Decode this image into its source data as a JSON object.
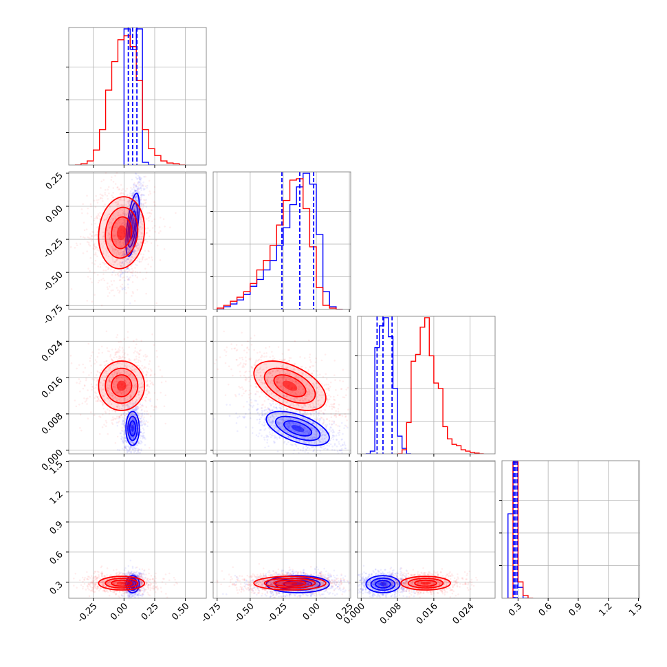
{
  "colors": {
    "blue": "#0000ff",
    "red": "#ff0000",
    "grid": "#b0b0b0",
    "axis": "#000000"
  },
  "chart_data": {
    "type": "corner",
    "parameters": [
      {
        "id": "p0",
        "range": [
          -0.45,
          0.67
        ],
        "ticks": [
          "-0.25",
          "0.00",
          "0.25",
          "0.50"
        ],
        "tick_values": [
          -0.25,
          0.0,
          0.25,
          0.5
        ]
      },
      {
        "id": "p1",
        "range": [
          -0.78,
          0.26
        ],
        "ticks": [
          "-0.75",
          "-0.50",
          "-0.25",
          "0.00",
          "0.25"
        ],
        "tick_values": [
          -0.75,
          -0.5,
          -0.25,
          0.0,
          0.25
        ]
      },
      {
        "id": "p2",
        "range": [
          -0.0008,
          0.0295
        ],
        "ticks": [
          "0.000",
          "0.008",
          "0.016",
          "0.024"
        ],
        "tick_values": [
          0.0,
          0.008,
          0.016,
          0.024
        ]
      },
      {
        "id": "p3",
        "range": [
          0.14,
          1.51
        ],
        "ticks": [
          "0.3",
          "0.6",
          "0.9",
          "1.2",
          "1.5"
        ],
        "tick_values": [
          0.3,
          0.6,
          0.9,
          1.2,
          1.5
        ]
      }
    ],
    "series": [
      {
        "color": "blue",
        "means": [
          0.07,
          -0.14,
          0.0048,
          0.28
        ],
        "stds": [
          0.032,
          0.14,
          0.0022,
          0.05
        ],
        "corr": {
          "0-1": 0.6,
          "0-2": 0.0,
          "0-3": 0.0,
          "1-2": -0.55,
          "1-3": 0.0,
          "2-3": 0.0
        },
        "quantiles": [
          [
            0.035,
            0.07,
            0.105
          ],
          [
            -0.26,
            -0.125,
            -0.02
          ],
          [
            0.0035,
            0.0048,
            0.0068
          ],
          [
            0.255,
            0.27,
            0.29
          ]
        ],
        "histograms": [
          {
            "edges": [
              0.0,
              0.05,
              0.1,
              0.15,
              0.2,
              0.25
            ],
            "counts": [
              1.0,
              0.85,
              1.0,
              0.02,
              0.0
            ]
          },
          {
            "edges": [
              -0.75,
              -0.7,
              -0.65,
              -0.6,
              -0.55,
              -0.5,
              -0.45,
              -0.4,
              -0.35,
              -0.3,
              -0.25,
              -0.2,
              -0.15,
              -0.1,
              -0.05,
              0.0,
              0.05,
              0.1,
              0.15,
              0.2
            ],
            "counts": [
              0.0,
              0.02,
              0.04,
              0.07,
              0.11,
              0.17,
              0.22,
              0.29,
              0.36,
              0.47,
              0.6,
              0.77,
              0.9,
              1.0,
              0.92,
              0.55,
              0.13,
              0.02,
              0.0
            ]
          },
          {
            "edges": [
              0.001,
              0.002,
              0.003,
              0.004,
              0.005,
              0.006,
              0.007,
              0.008,
              0.009,
              0.01,
              0.011
            ],
            "counts": [
              0.0,
              0.02,
              0.78,
              0.94,
              1.0,
              0.86,
              0.48,
              0.13,
              0.04,
              0.0
            ]
          },
          {
            "edges": [
              0.2,
              0.25,
              0.3,
              0.35,
              0.4
            ],
            "counts": [
              0.62,
              1.0,
              0.08,
              0.0
            ]
          }
        ]
      },
      {
        "color": "red",
        "means": [
          -0.02,
          -0.2,
          0.0142,
          0.29
        ],
        "stds": [
          0.11,
          0.16,
          0.0032,
          0.04
        ],
        "corr": {
          "0-1": 0.1,
          "0-2": 0.0,
          "0-3": 0.0,
          "1-2": -0.5,
          "1-3": 0.0,
          "2-3": 0.0
        },
        "histograms": [
          {
            "edges": [
              -0.4,
              -0.35,
              -0.3,
              -0.25,
              -0.2,
              -0.15,
              -0.1,
              -0.05,
              0.0,
              0.05,
              0.1,
              0.15,
              0.2,
              0.25,
              0.3,
              0.35,
              0.4,
              0.45,
              0.5
            ],
            "counts": [
              0.0,
              0.01,
              0.03,
              0.11,
              0.26,
              0.55,
              0.76,
              0.92,
              0.95,
              0.87,
              0.62,
              0.26,
              0.12,
              0.07,
              0.03,
              0.015,
              0.01,
              0.0
            ]
          },
          {
            "edges": [
              -0.75,
              -0.7,
              -0.65,
              -0.6,
              -0.55,
              -0.5,
              -0.45,
              -0.4,
              -0.35,
              -0.3,
              -0.25,
              -0.2,
              -0.15,
              -0.1,
              -0.05,
              0.0,
              0.05,
              0.1,
              0.15,
              0.2
            ],
            "counts": [
              0.01,
              0.03,
              0.06,
              0.09,
              0.13,
              0.19,
              0.29,
              0.36,
              0.47,
              0.62,
              0.8,
              0.95,
              0.96,
              0.74,
              0.46,
              0.16,
              0.03,
              0.01,
              0.0
            ]
          },
          {
            "edges": [
              0.008,
              0.009,
              0.01,
              0.011,
              0.012,
              0.013,
              0.014,
              0.015,
              0.016,
              0.017,
              0.018,
              0.019,
              0.02,
              0.021,
              0.022,
              0.023,
              0.024,
              0.025,
              0.026,
              0.027
            ],
            "counts": [
              0.0,
              0.03,
              0.23,
              0.68,
              0.73,
              0.93,
              1.0,
              0.72,
              0.52,
              0.48,
              0.2,
              0.11,
              0.07,
              0.06,
              0.03,
              0.02,
              0.01,
              0.005,
              0.0
            ]
          },
          {
            "edges": [
              0.2,
              0.25,
              0.3,
              0.35,
              0.4,
              0.45
            ],
            "counts": [
              0.0,
              1.0,
              0.12,
              0.02,
              0.0
            ]
          }
        ]
      }
    ]
  }
}
